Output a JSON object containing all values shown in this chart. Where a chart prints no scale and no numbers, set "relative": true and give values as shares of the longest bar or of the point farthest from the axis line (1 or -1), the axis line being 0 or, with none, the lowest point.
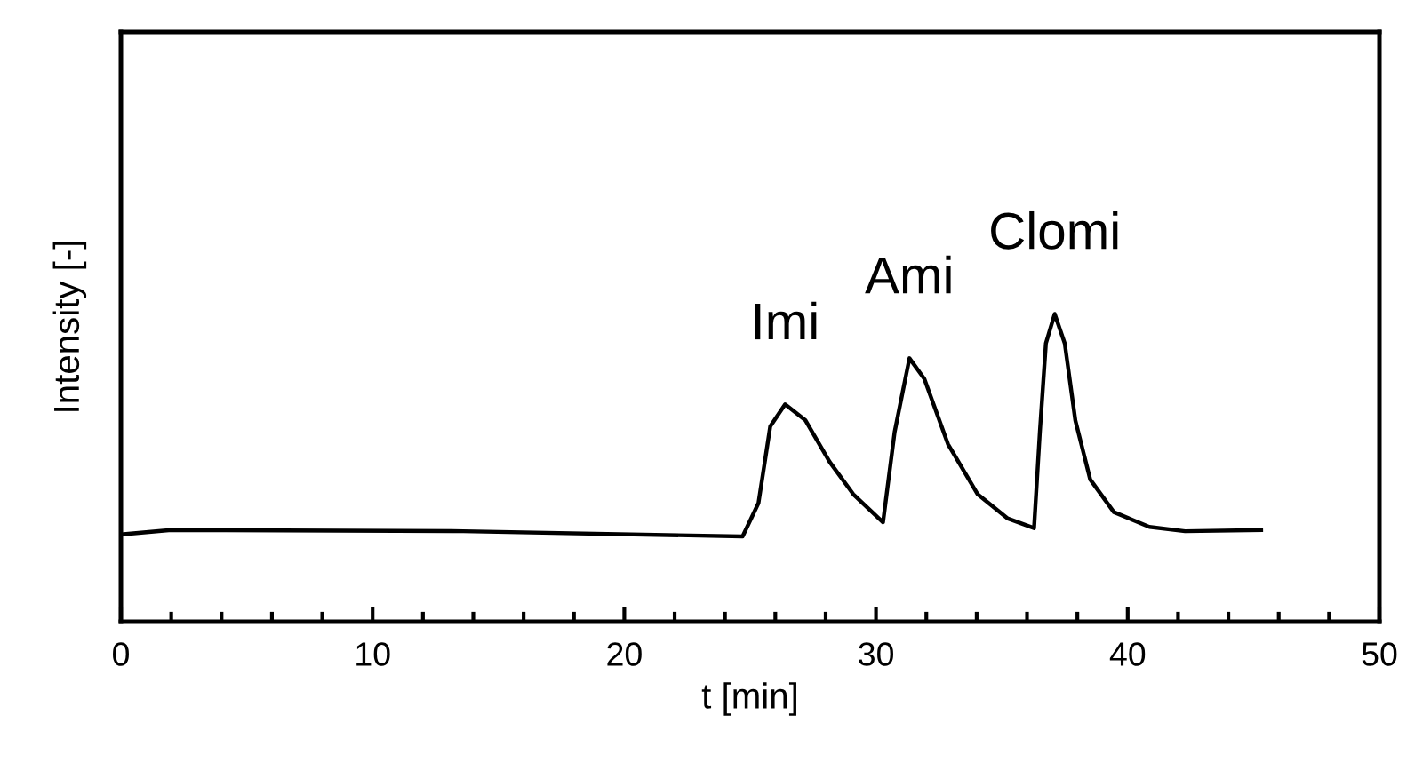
{
  "chart_data": {
    "type": "line",
    "relative": true,
    "xlabel": "t [min]",
    "ylabel": "Intensity [-]",
    "x": [
      0.1,
      2.0,
      13.6,
      24.7,
      25.33,
      25.8,
      26.39,
      27.2,
      28.16,
      29.1,
      30.28,
      30.74,
      31.33,
      31.92,
      32.86,
      34.04,
      35.22,
      36.28,
      36.51,
      36.75,
      37.1,
      37.5,
      37.92,
      38.51,
      39.45,
      40.86,
      42.28,
      45.3
    ],
    "series": [
      {
        "color": "#000000",
        "values": [
          0.284,
          0.298,
          0.294,
          0.277,
          0.385,
          0.635,
          0.706,
          0.654,
          0.519,
          0.414,
          0.323,
          0.616,
          0.856,
          0.789,
          0.577,
          0.414,
          0.336,
          0.304,
          0.616,
          0.904,
          1,
          0.904,
          0.654,
          0.462,
          0.356,
          0.308,
          0.294,
          0.298
        ]
      }
    ],
    "xlim": [
      0,
      50
    ],
    "xticks": [
      0,
      {
        "value": 2,
        "label": null
      },
      {
        "value": 4,
        "label": null
      },
      {
        "value": 6,
        "label": null
      },
      {
        "value": 8,
        "label": null
      },
      10,
      {
        "value": 12,
        "label": null
      },
      {
        "value": 14,
        "label": null
      },
      {
        "value": 16,
        "label": null
      },
      {
        "value": 18,
        "label": null
      },
      20,
      {
        "value": 22,
        "label": null
      },
      {
        "value": 24,
        "label": null
      },
      {
        "value": 26,
        "label": null
      },
      {
        "value": 28,
        "label": null
      },
      30,
      {
        "value": 32,
        "label": null
      },
      {
        "value": 34,
        "label": null
      },
      {
        "value": 36,
        "label": null
      },
      {
        "value": 38,
        "label": null
      },
      40,
      {
        "value": 42,
        "label": null
      },
      {
        "value": 44,
        "label": null
      },
      {
        "value": 46,
        "label": null
      },
      {
        "value": 48,
        "label": null
      },
      50
    ],
    "annotations": [
      {
        "text": "Imi",
        "x": 26.39,
        "y": 0.706
      },
      {
        "text": "Ami",
        "x": 31.33,
        "y": 0.856
      },
      {
        "text": "Clomi",
        "x": 37.1,
        "y": 1
      }
    ],
    "grid": false,
    "legend": false,
    "marker": "none",
    "line_style": "solid"
  }
}
